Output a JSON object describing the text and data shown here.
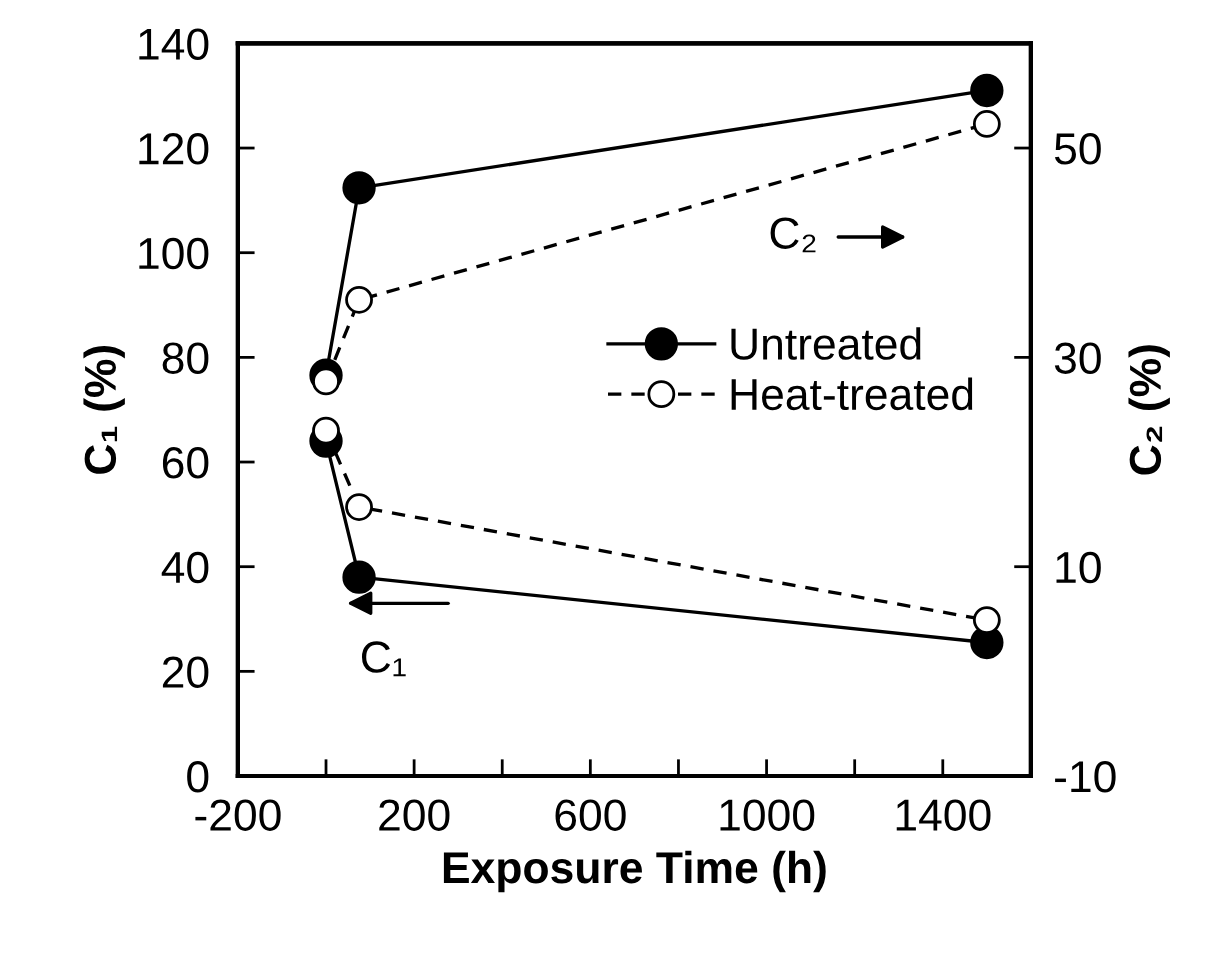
{
  "chart_data": {
    "type": "line",
    "xlabel": "Exposure Time (h)",
    "ylabel": "C₁ (%)",
    "y2label": "C₂ (%)",
    "x": [
      0,
      75,
      1500
    ],
    "series": [
      {
        "name": "Untreated",
        "color": "#000000",
        "values": [
          64,
          38,
          25.5
        ],
        "line_style": "solid"
      },
      {
        "name": "Heat-treated",
        "color": "#000000",
        "values": [
          66,
          51.4,
          29.8
        ],
        "line_style": "dashed"
      },
      {
        "color": "#000000",
        "values": [
          28.3,
          46.2,
          55.5
        ],
        "line_style": "solid",
        "axis": "y2"
      },
      {
        "color": "#000000",
        "values": [
          27.7,
          35.5,
          52.3
        ],
        "line_style": "dashed",
        "axis": "y2"
      }
    ],
    "marker": "circle",
    "xlim": [
      -200,
      1600
    ],
    "xticks": [
      -200,
      {
        "value": 0,
        "label": null
      },
      200,
      {
        "value": 400,
        "label": null
      },
      600,
      {
        "value": 800,
        "label": null
      },
      1000,
      {
        "value": 1200,
        "label": null
      },
      1400
    ],
    "ylim": [
      0,
      140
    ],
    "yticks": [
      0,
      20,
      40,
      60,
      80,
      100,
      120,
      140
    ],
    "y2lim": [
      -10,
      60
    ],
    "y2ticks": [
      -10,
      10,
      30,
      50
    ],
    "annotations": [
      "C₂",
      "C₁"
    ],
    "legend": "center right",
    "grid": false
  }
}
